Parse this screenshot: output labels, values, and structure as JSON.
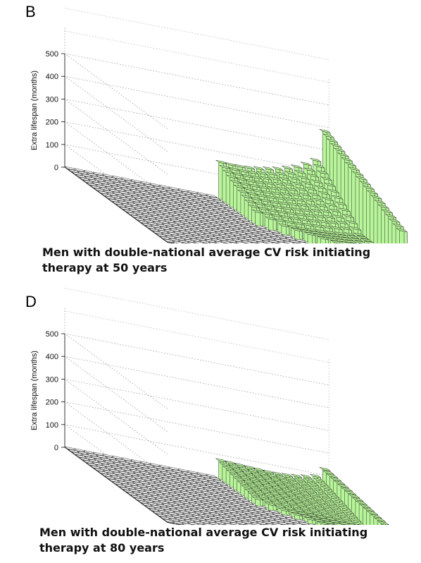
{
  "chart_data": [
    {
      "type": "bar3d",
      "panel": "B",
      "caption": "Men with double-national average CV risk initiating therapy at 50 years",
      "zlabel": "Extra lifespan (months)",
      "zticks": [
        0,
        100,
        200,
        300,
        400,
        500
      ],
      "zlim": [
        0,
        500
      ],
      "grid_rows": 28,
      "grid_cols": 28,
      "side_colors": {
        "default": "#ffffff",
        "benefit": "#b8f59a",
        "blue": "#0a14b4",
        "yellow": "#f5e27a"
      },
      "back_row_heights": [
        155,
        175,
        190,
        200,
        205,
        210,
        210,
        205,
        200,
        195,
        190,
        185,
        180,
        175,
        170,
        165,
        160,
        158,
        158,
        160,
        165,
        172,
        180,
        192,
        205,
        225,
        250,
        300
      ],
      "front_row_heights": [
        0,
        0,
        0,
        0,
        0,
        0,
        0,
        0,
        0,
        0,
        0,
        0,
        0,
        0,
        0,
        0,
        0,
        0,
        0,
        0,
        0,
        0,
        0,
        0,
        0,
        0,
        0,
        385
      ]
    },
    {
      "type": "bar3d",
      "panel": "D",
      "caption": "Men with double-national average CV risk initiating therapy at 80 years",
      "zlabel": "Extra lifespan (months)",
      "zticks": [
        0,
        100,
        200,
        300,
        400,
        500
      ],
      "zlim": [
        0,
        500
      ],
      "grid_rows": 28,
      "grid_cols": 28,
      "side_colors": {
        "default": "#ffffff",
        "benefit": "#b8f59a",
        "blue": "#0a14b4",
        "yellow": "#f5e27a"
      },
      "back_row_heights": [
        95,
        100,
        102,
        103,
        103,
        102,
        100,
        98,
        96,
        94,
        92,
        90,
        88,
        86,
        84,
        82,
        80,
        78,
        76,
        74,
        72,
        70,
        70,
        72,
        76,
        82,
        92,
        110
      ],
      "front_row_heights": [
        0,
        0,
        0,
        0,
        0,
        0,
        0,
        0,
        0,
        0,
        0,
        0,
        0,
        0,
        0,
        0,
        0,
        0,
        0,
        0,
        0,
        0,
        0,
        0,
        0,
        0,
        0,
        130
      ]
    }
  ]
}
